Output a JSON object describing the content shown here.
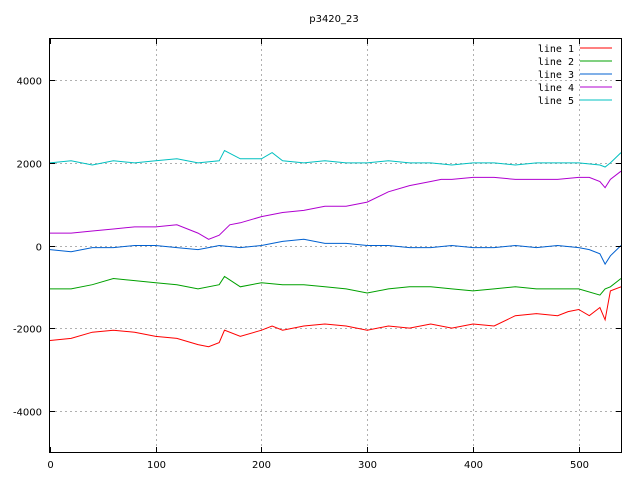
{
  "chart_data": {
    "type": "line",
    "title": "p3420_23",
    "xlabel": "",
    "ylabel": "",
    "xlim": [
      0,
      540
    ],
    "ylim": [
      -5000,
      5000
    ],
    "xticks": [
      0,
      100,
      200,
      300,
      400,
      500
    ],
    "yticks": [
      -4000,
      -2000,
      0,
      2000,
      4000
    ],
    "grid": true,
    "legend_position": "top-right",
    "series": [
      {
        "name": "line 1",
        "color": "#ff0000",
        "x": [
          0,
          20,
          40,
          60,
          80,
          100,
          120,
          140,
          150,
          160,
          165,
          180,
          200,
          210,
          220,
          240,
          260,
          280,
          300,
          320,
          340,
          360,
          380,
          400,
          420,
          440,
          460,
          480,
          490,
          500,
          510,
          520,
          525,
          530,
          540
        ],
        "y": [
          -2300,
          -2250,
          -2100,
          -2050,
          -2100,
          -2200,
          -2250,
          -2400,
          -2450,
          -2350,
          -2050,
          -2200,
          -2050,
          -1950,
          -2050,
          -1950,
          -1900,
          -1950,
          -2050,
          -1950,
          -2000,
          -1900,
          -2000,
          -1900,
          -1950,
          -1700,
          -1650,
          -1700,
          -1600,
          -1550,
          -1700,
          -1500,
          -1800,
          -1100,
          -1000
        ]
      },
      {
        "name": "line 2",
        "color": "#00a000",
        "x": [
          0,
          20,
          40,
          60,
          80,
          100,
          120,
          140,
          160,
          165,
          180,
          200,
          220,
          240,
          260,
          280,
          300,
          320,
          340,
          360,
          380,
          400,
          420,
          440,
          460,
          480,
          500,
          520,
          525,
          530,
          540
        ],
        "y": [
          -1050,
          -1050,
          -950,
          -800,
          -850,
          -900,
          -950,
          -1050,
          -950,
          -750,
          -1000,
          -900,
          -950,
          -950,
          -1000,
          -1050,
          -1150,
          -1050,
          -1000,
          -1000,
          -1050,
          -1100,
          -1050,
          -1000,
          -1050,
          -1050,
          -1050,
          -1200,
          -1050,
          -1000,
          -800
        ]
      },
      {
        "name": "line 3",
        "color": "#0060d0",
        "x": [
          0,
          20,
          40,
          60,
          80,
          100,
          120,
          140,
          150,
          160,
          180,
          200,
          220,
          240,
          260,
          280,
          300,
          320,
          340,
          360,
          380,
          400,
          420,
          440,
          460,
          480,
          500,
          510,
          520,
          525,
          530,
          540
        ],
        "y": [
          -100,
          -150,
          -50,
          -50,
          0,
          0,
          -50,
          -100,
          -50,
          0,
          -50,
          0,
          100,
          150,
          50,
          50,
          0,
          0,
          -50,
          -50,
          0,
          -50,
          -50,
          0,
          -50,
          0,
          -50,
          -100,
          -200,
          -450,
          -250,
          0
        ]
      },
      {
        "name": "line 4",
        "color": "#b000d0",
        "x": [
          0,
          20,
          40,
          60,
          80,
          100,
          120,
          140,
          150,
          160,
          170,
          180,
          200,
          220,
          240,
          260,
          280,
          300,
          320,
          340,
          360,
          370,
          380,
          400,
          420,
          440,
          460,
          480,
          500,
          510,
          520,
          525,
          530,
          540
        ],
        "y": [
          300,
          300,
          350,
          400,
          450,
          450,
          500,
          300,
          150,
          250,
          500,
          550,
          700,
          800,
          850,
          950,
          950,
          1050,
          1300,
          1450,
          1550,
          1600,
          1600,
          1650,
          1650,
          1600,
          1600,
          1600,
          1650,
          1650,
          1550,
          1400,
          1600,
          1800
        ]
      },
      {
        "name": "line 5",
        "color": "#00c0c0",
        "x": [
          0,
          20,
          40,
          60,
          80,
          100,
          120,
          140,
          160,
          165,
          180,
          200,
          210,
          220,
          240,
          260,
          280,
          300,
          320,
          340,
          360,
          380,
          400,
          420,
          440,
          460,
          480,
          500,
          520,
          525,
          530,
          540
        ],
        "y": [
          2000,
          2050,
          1950,
          2050,
          2000,
          2050,
          2100,
          2000,
          2050,
          2300,
          2100,
          2100,
          2250,
          2050,
          2000,
          2050,
          2000,
          2000,
          2050,
          2000,
          2000,
          1950,
          2000,
          2000,
          1950,
          2000,
          2000,
          2000,
          1950,
          1900,
          2000,
          2250
        ]
      }
    ]
  }
}
